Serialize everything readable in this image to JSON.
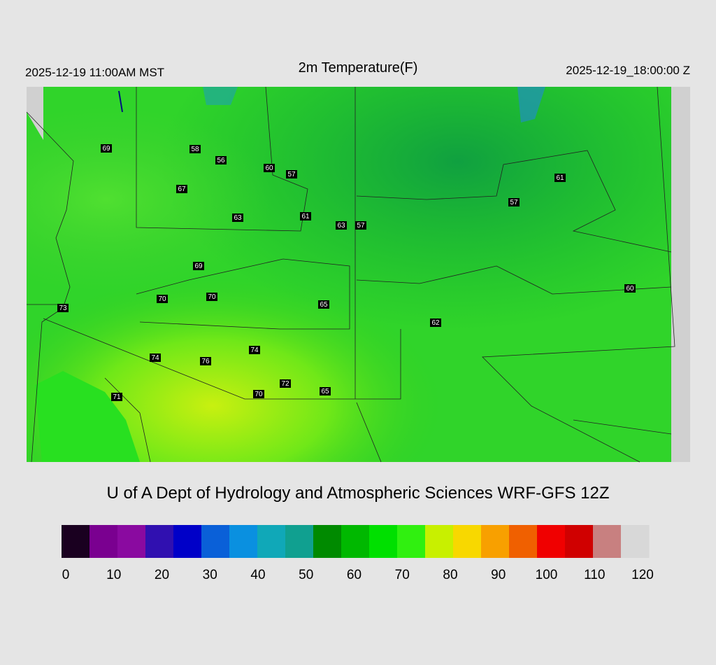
{
  "header": {
    "left": "2025-12-19 11:00AM MST",
    "title": "2m Temperature(F)",
    "right": "2025-12-19_18:00:00 Z"
  },
  "stations": [
    69,
    58,
    56,
    60,
    57,
    67,
    63,
    61,
    63,
    57,
    61,
    57,
    69,
    70,
    70,
    73,
    65,
    62,
    60,
    74,
    74,
    76,
    72,
    70,
    65,
    71
  ],
  "credit": "U of A Dept of Hydrology and Atmospheric Sciences WRF-GFS 12Z",
  "colorbar": {
    "range": [
      0,
      120
    ],
    "ticks": [
      0,
      10,
      20,
      30,
      40,
      50,
      60,
      70,
      80,
      90,
      100,
      110,
      120
    ],
    "colors": [
      "#1a0020",
      "#7a0090",
      "#8a0aa0",
      "#3010b0",
      "#0000c8",
      "#0a60d8",
      "#0a90e0",
      "#10a8b8",
      "#10a090",
      "#008a00",
      "#00b800",
      "#00e000",
      "#30f010",
      "#c8f000",
      "#f8d800",
      "#f8a000",
      "#f06000",
      "#f00000",
      "#d00000",
      "#c88080",
      "#d8d8d8"
    ]
  }
}
